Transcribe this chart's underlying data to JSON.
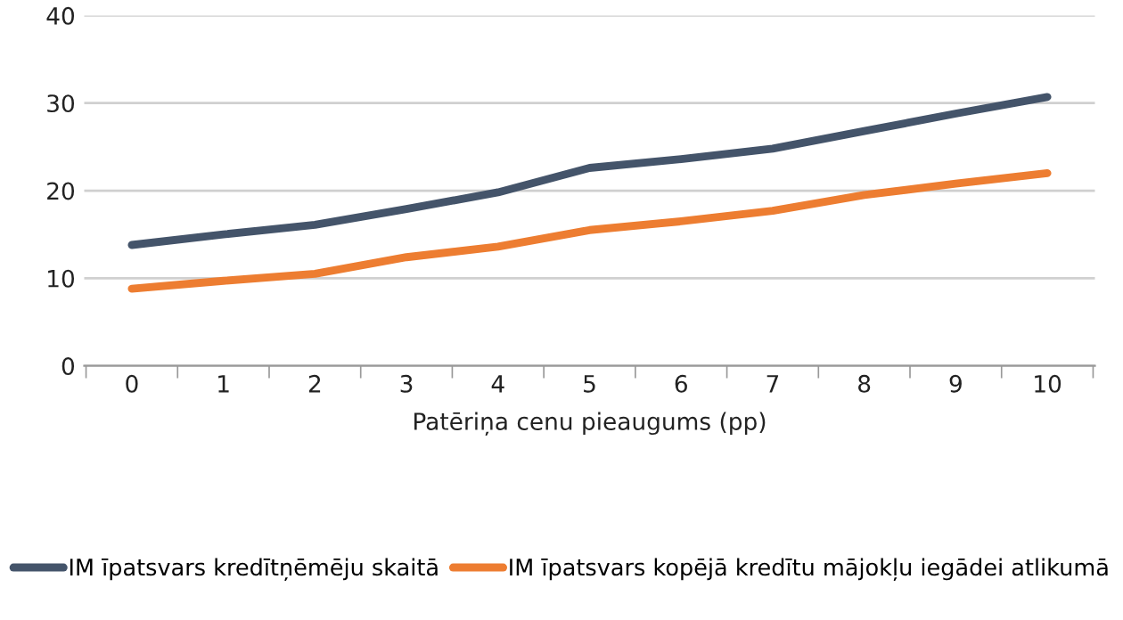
{
  "chart_data": {
    "type": "line",
    "xlabel": "Patēriņa cenu pieaugums (pp)",
    "categories": [
      "0",
      "1",
      "2",
      "3",
      "4",
      "5",
      "6",
      "7",
      "8",
      "9",
      "10"
    ],
    "series": [
      {
        "name": "IM īpatsvars kredītņēmēju skaitā",
        "color": "#44546a",
        "values": [
          13.8,
          15.0,
          16.1,
          17.9,
          19.8,
          22.6,
          23.6,
          24.8,
          26.8,
          28.8,
          30.7
        ]
      },
      {
        "name": "IM īpatsvars kopējā kredītu mājokļu iegādei atlikumā",
        "color": "#ed7d31",
        "values": [
          8.8,
          9.7,
          10.5,
          12.4,
          13.6,
          15.5,
          16.5,
          17.7,
          19.5,
          20.8,
          22.0
        ]
      }
    ],
    "ylim": [
      0,
      40
    ],
    "yticks": [
      0,
      10,
      20,
      30,
      40
    ],
    "grid": "y",
    "legend": "bottom",
    "marker": "none",
    "line_style": "solid"
  }
}
